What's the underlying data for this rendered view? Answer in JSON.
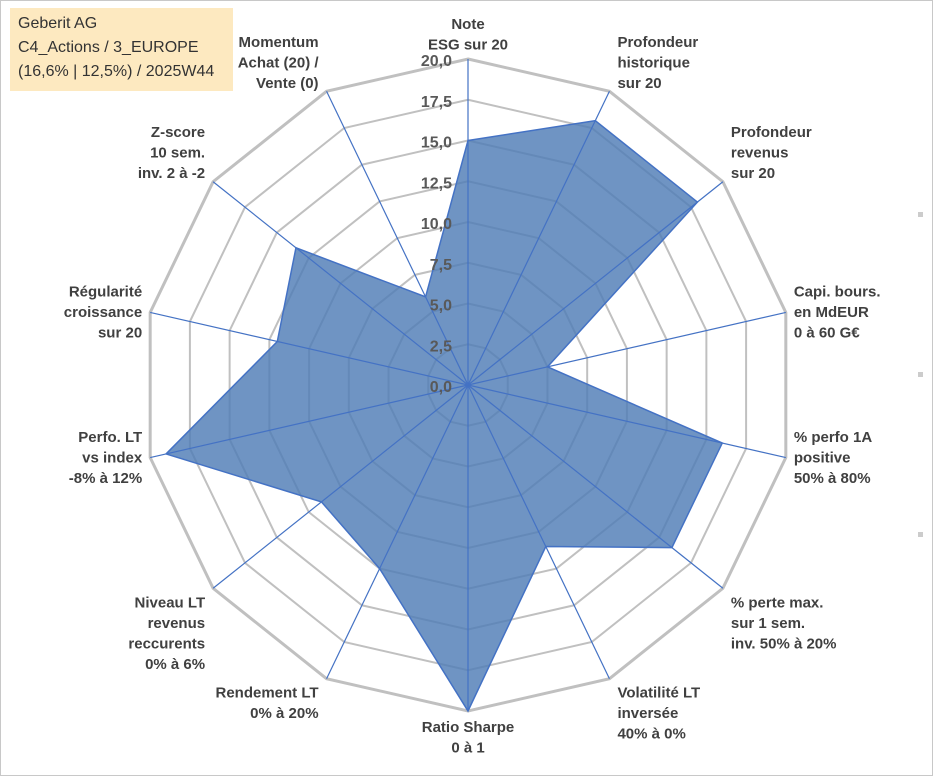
{
  "header": {
    "line1": "Geberit AG",
    "line2": "C4_Actions / 3_EUROPE",
    "line3": "(16,6% | 12,5%) / 2025W44"
  },
  "chart_data": {
    "type": "radar",
    "title": "Geberit AG",
    "rmin": 0,
    "rmax": 20,
    "rstep": 2.5,
    "tick_labels": [
      "0,0",
      "2,5",
      "5,0",
      "7,5",
      "10,0",
      "12,5",
      "15,0",
      "17,5",
      "20,0"
    ],
    "axes": [
      {
        "label": [
          "Note",
          "ESG sur 20"
        ],
        "value": 15.0
      },
      {
        "label": [
          "Profondeur",
          "historique",
          "sur 20"
        ],
        "value": 18.0
      },
      {
        "label": [
          "Profondeur",
          "revenus",
          "sur 20"
        ],
        "value": 18.0
      },
      {
        "label": [
          "Capi. bours.",
          "en MdEUR",
          "0 à 60 G€"
        ],
        "value": 5.0
      },
      {
        "label": [
          "% perfo 1A",
          "positive",
          "50% à 80%"
        ],
        "value": 16.0
      },
      {
        "label": [
          "% perte max.",
          "sur 1 sem.",
          "inv. 50% à 20%"
        ],
        "value": 16.0
      },
      {
        "label": [
          "Volatilité LT",
          "inversée",
          "40% à 0%"
        ],
        "value": 11.0
      },
      {
        "label": [
          "Ratio Sharpe",
          "0 à 1"
        ],
        "value": 20.0
      },
      {
        "label": [
          "Rendement LT",
          "0% à 20%"
        ],
        "value": 12.5
      },
      {
        "label": [
          "Niveau LT",
          "revenus",
          "reccurents",
          "0% à 6%"
        ],
        "value": 11.5
      },
      {
        "label": [
          "Perfo. LT",
          "vs index",
          "-8% à 12%"
        ],
        "value": 19.0
      },
      {
        "label": [
          "Régularité",
          "croissance",
          "sur 20"
        ],
        "value": 12.0
      },
      {
        "label": [
          "Z-score",
          "10 sem.",
          "inv. 2 à -2"
        ],
        "value": 13.5
      },
      {
        "label": [
          "Momentum",
          "Achat (20) /",
          "Vente (0)"
        ],
        "value": 6.0
      }
    ],
    "series": [
      {
        "name": "Geberit AG",
        "color": "#4f7cb6"
      }
    ]
  },
  "colors": {
    "fill": "#4f7cb6",
    "stroke": "#4472c4",
    "grid": "#c0c0c0",
    "spoke": "#4472c4",
    "title_bg": "#fde9c0"
  }
}
